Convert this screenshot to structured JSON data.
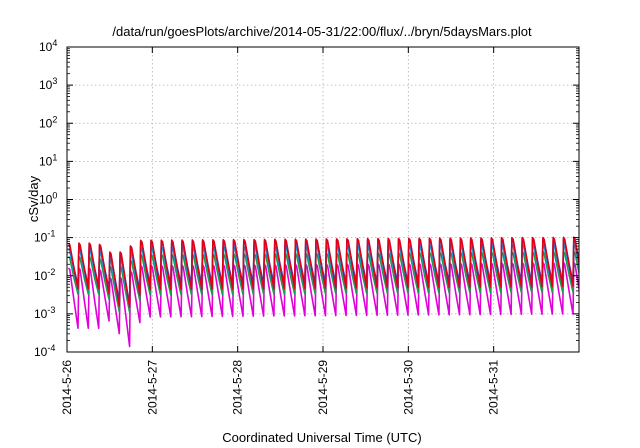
{
  "chart_data": {
    "type": "line",
    "title": "/data/run/goesPlots/archive/2014-05-31/22:00/flux/../bryn/5daysMars.plot",
    "xlabel": "Coordinated Universal Time (UTC)",
    "ylabel": "cSv/day",
    "y_scale": "log",
    "ylim": [
      0.0001,
      10000
    ],
    "y_ticks": [
      {
        "value": 0.0001,
        "base": "10",
        "exp": "-4"
      },
      {
        "value": 0.001,
        "base": "10",
        "exp": "-3"
      },
      {
        "value": 0.01,
        "base": "10",
        "exp": "-2"
      },
      {
        "value": 0.1,
        "base": "10",
        "exp": "-1"
      },
      {
        "value": 1,
        "base": "10",
        "exp": "0"
      },
      {
        "value": 10,
        "base": "10",
        "exp": "1"
      },
      {
        "value": 100,
        "base": "10",
        "exp": "2"
      },
      {
        "value": 1000,
        "base": "10",
        "exp": "3"
      },
      {
        "value": 10000,
        "base": "10",
        "exp": "4"
      }
    ],
    "x_range": [
      "2014-05-26T00:00",
      "2014-06-01T00:00"
    ],
    "x_ticks": [
      "2014-5-26",
      "2014-5-27",
      "2014-5-28",
      "2014-5-29",
      "2014-5-30",
      "2014-5-31"
    ],
    "grid": true,
    "legend": "none",
    "sawtooth_period_hours": 2.9,
    "series": [
      {
        "color": "#e0001a",
        "peak": 0.082,
        "trough": 0.0042,
        "first_peak": 0.072,
        "first_trough": 0.0015
      },
      {
        "color": "#2a3fe0",
        "peak": 0.075,
        "trough": 0.0055,
        "first_peak": 0.065,
        "first_trough": 0.0018
      },
      {
        "color": "#00a8d8",
        "peak": 0.055,
        "trough": 0.0042,
        "first_peak": 0.05,
        "first_trough": 0.0014
      },
      {
        "color": "#1f9a4a",
        "peak": 0.035,
        "trough": 0.003,
        "first_peak": 0.032,
        "first_trough": 0.0011
      },
      {
        "color": "#e000d8",
        "peak": 0.018,
        "trough": 0.0008,
        "first_peak": 0.016,
        "first_trough": 0.00014
      }
    ],
    "dip": {
      "center": "2014-05-26T15:30",
      "width_hours": 6,
      "min_factor": 0.12
    }
  }
}
